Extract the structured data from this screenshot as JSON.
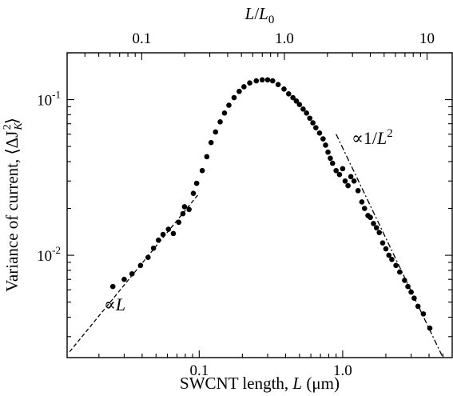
{
  "chart_data": {
    "type": "scatter",
    "title": "",
    "x_scale": "log",
    "y_scale": "log",
    "xlim": [
      0.012,
      5.8
    ],
    "ylim": [
      0.0022,
      0.2
    ],
    "x2lim": [
      0.03,
      15
    ],
    "xlabel": {
      "prefix": "SWCNT length, ",
      "var": "L",
      "suffix": " (μm)"
    },
    "ylabel": {
      "prefix": "Variance of current, ",
      "math": "⟨ΔJ",
      "sub": "K",
      "sup": "2",
      "close": "⟩"
    },
    "x2label": {
      "var": "L",
      "slash": "/",
      "var0": "L",
      "sub": "0"
    },
    "x_ticks": [
      {
        "value": 0.1,
        "label": "0.1"
      },
      {
        "value": 1,
        "label": "1.0"
      }
    ],
    "x2_ticks": [
      {
        "value": 0.1,
        "label": "0.1"
      },
      {
        "value": 1,
        "label": "1.0"
      },
      {
        "value": 10,
        "label": "10"
      }
    ],
    "y_ticks": [
      {
        "value": 0.01,
        "base": "10",
        "exp": "-2"
      },
      {
        "value": 0.1,
        "base": "10",
        "exp": "-1"
      }
    ],
    "series": [
      {
        "marker": "circle",
        "color": "#000000",
        "points": [
          [
            0.025,
            0.0063
          ],
          [
            0.03,
            0.007
          ],
          [
            0.034,
            0.0076
          ],
          [
            0.039,
            0.0086
          ],
          [
            0.044,
            0.0097
          ],
          [
            0.048,
            0.0111
          ],
          [
            0.052,
            0.0125
          ],
          [
            0.056,
            0.0136
          ],
          [
            0.061,
            0.0147
          ],
          [
            0.066,
            0.0138
          ],
          [
            0.072,
            0.0163
          ],
          [
            0.077,
            0.0185
          ],
          [
            0.079,
            0.0205
          ],
          [
            0.085,
            0.0197
          ],
          [
            0.091,
            0.025
          ],
          [
            0.096,
            0.029
          ],
          [
            0.105,
            0.035
          ],
          [
            0.113,
            0.043
          ],
          [
            0.121,
            0.053
          ],
          [
            0.13,
            0.062
          ],
          [
            0.14,
            0.072
          ],
          [
            0.15,
            0.082
          ],
          [
            0.161,
            0.092
          ],
          [
            0.175,
            0.103
          ],
          [
            0.19,
            0.113
          ],
          [
            0.205,
            0.121
          ],
          [
            0.225,
            0.128
          ],
          [
            0.25,
            0.132
          ],
          [
            0.275,
            0.134
          ],
          [
            0.3,
            0.134
          ],
          [
            0.325,
            0.132
          ],
          [
            0.355,
            0.125
          ],
          [
            0.39,
            0.117
          ],
          [
            0.42,
            0.109
          ],
          [
            0.45,
            0.103
          ],
          [
            0.475,
            0.098
          ],
          [
            0.5,
            0.093
          ],
          [
            0.53,
            0.087
          ],
          [
            0.56,
            0.082
          ],
          [
            0.59,
            0.076
          ],
          [
            0.62,
            0.071
          ],
          [
            0.65,
            0.066
          ],
          [
            0.69,
            0.061
          ],
          [
            0.73,
            0.056
          ],
          [
            0.76,
            0.051
          ],
          [
            0.79,
            0.046
          ],
          [
            0.82,
            0.042
          ],
          [
            0.85,
            0.039
          ],
          [
            0.9,
            0.035
          ],
          [
            0.95,
            0.033
          ],
          [
            1.0,
            0.036
          ],
          [
            1.04,
            0.03
          ],
          [
            1.09,
            0.028
          ],
          [
            1.14,
            0.032
          ],
          [
            1.2,
            0.03
          ],
          [
            1.28,
            0.026
          ],
          [
            1.36,
            0.022
          ],
          [
            1.42,
            0.02
          ],
          [
            1.5,
            0.018
          ],
          [
            1.56,
            0.0175
          ],
          [
            1.64,
            0.016
          ],
          [
            1.72,
            0.015
          ],
          [
            1.8,
            0.014
          ],
          [
            1.9,
            0.012
          ],
          [
            2.0,
            0.011
          ],
          [
            2.1,
            0.01
          ],
          [
            2.2,
            0.0094
          ],
          [
            2.35,
            0.0086
          ],
          [
            2.5,
            0.0078
          ],
          [
            2.7,
            0.0069
          ],
          [
            2.85,
            0.0063
          ],
          [
            3.0,
            0.0058
          ],
          [
            3.15,
            0.0053
          ],
          [
            3.35,
            0.0047
          ],
          [
            3.65,
            0.0042
          ],
          [
            4.05,
            0.0034
          ]
        ]
      }
    ],
    "guides": [
      {
        "style": "dashed",
        "from": [
          0.0125,
          0.0024
        ],
        "to": [
          0.1,
          0.025
        ]
      },
      {
        "style": "dash-dot",
        "from": [
          0.9,
          0.06
        ],
        "to": [
          5.0,
          0.0022
        ]
      }
    ],
    "annotations": [
      {
        "symbol": "∝",
        "var": "L",
        "num": "",
        "exp": ""
      },
      {
        "symbol": "∝",
        "num": "1/",
        "var": "L",
        "exp": "2"
      }
    ]
  }
}
